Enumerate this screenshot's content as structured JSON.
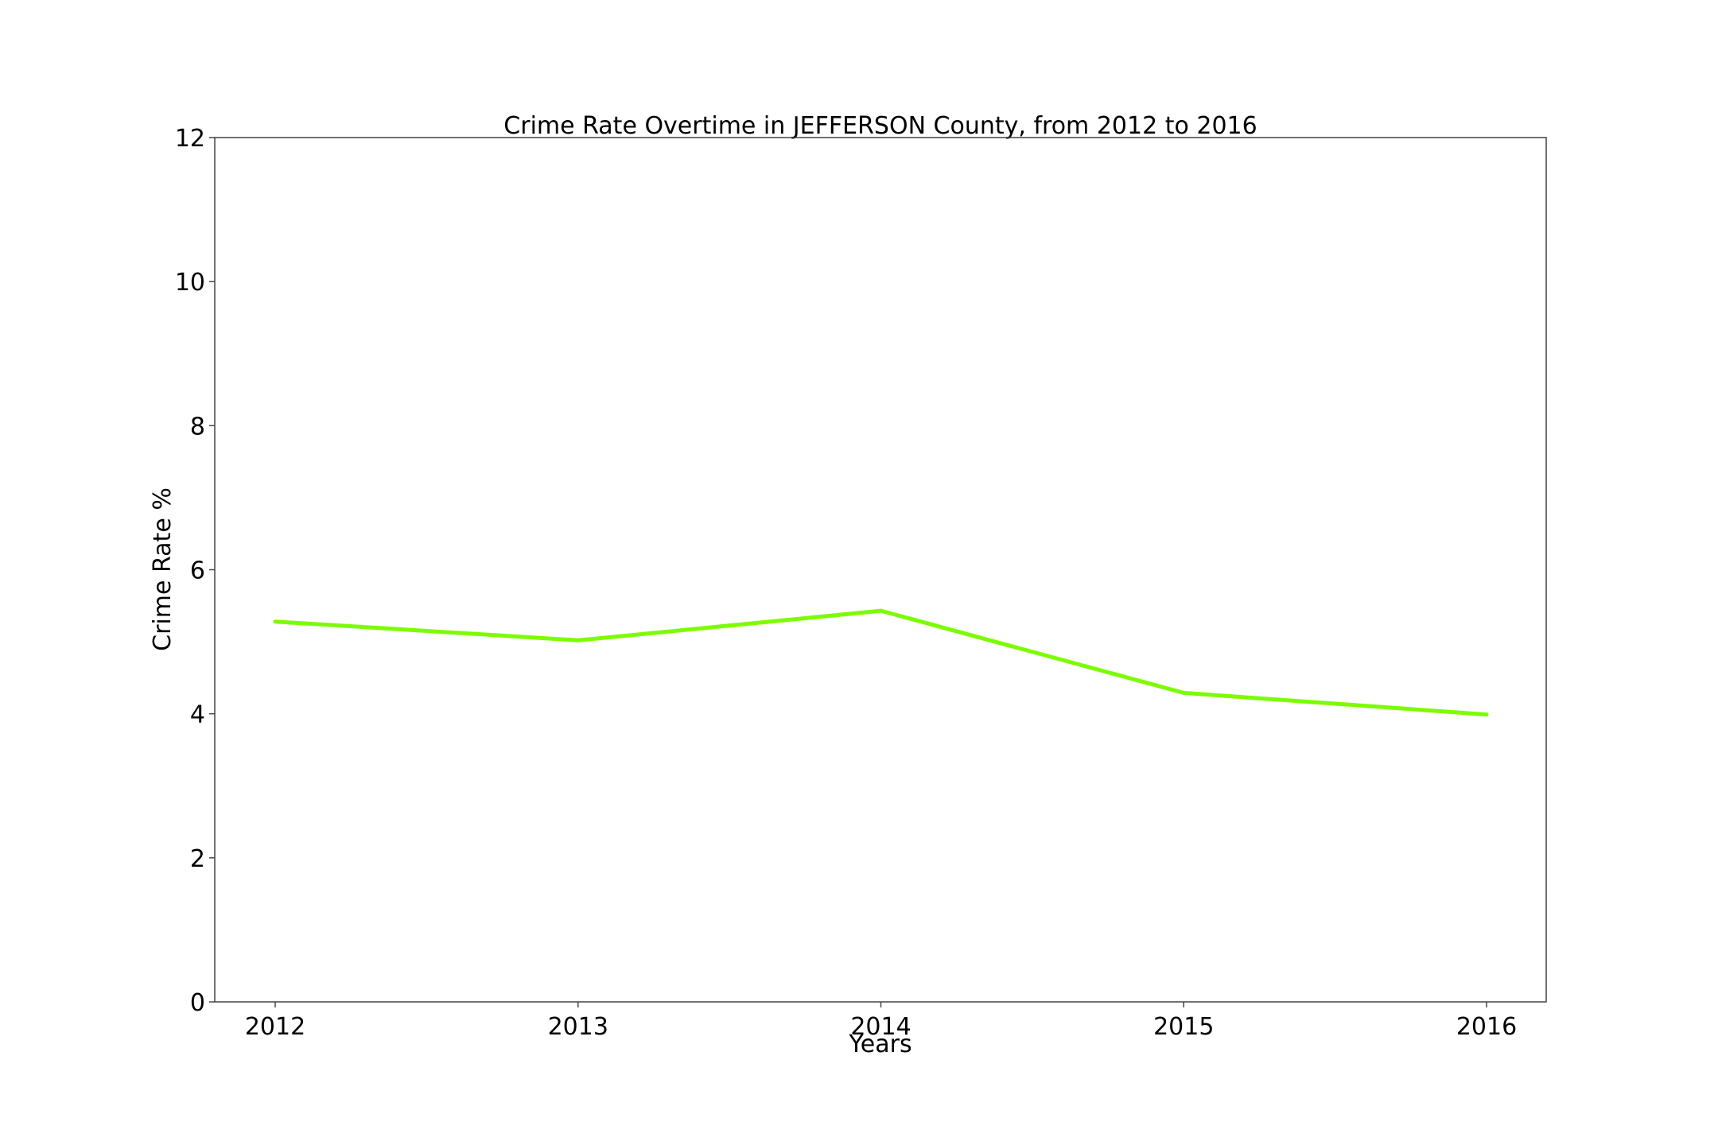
{
  "chart_data": {
    "type": "line",
    "title": "Crime Rate Overtime in JEFFERSON County, from 2012 to 2016",
    "xlabel": "Years",
    "ylabel": "Crime Rate %",
    "x": [
      "2012",
      "2013",
      "2014",
      "2015",
      "2016"
    ],
    "series": [
      {
        "values": [
          5.28,
          5.02,
          5.43,
          4.29,
          3.99
        ],
        "color": "#7cfc00"
      }
    ],
    "ylim": [
      0,
      12
    ],
    "yticks": [
      "0",
      "2",
      "4",
      "6",
      "8",
      "10",
      "12"
    ],
    "grid": false,
    "legend": "none"
  }
}
